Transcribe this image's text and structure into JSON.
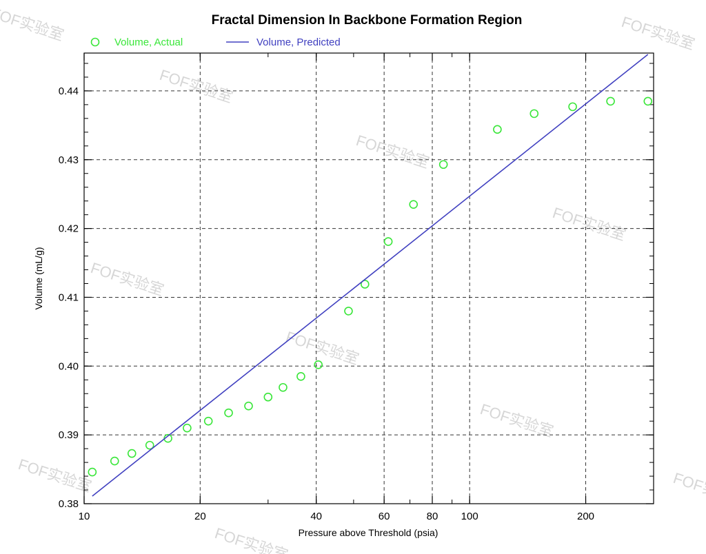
{
  "chart_data": {
    "type": "scatter",
    "title": "Fractal Dimension In Backbone Formation Region",
    "xlabel": "Pressure above Threshold (psia)",
    "ylabel": "Volume (mL/g)",
    "x_scale": "log",
    "xlim": [
      10,
      300
    ],
    "ylim": [
      0.38,
      0.4455
    ],
    "x_ticks": [
      10,
      20,
      40,
      60,
      80,
      100,
      200
    ],
    "y_ticks": [
      0.38,
      0.39,
      0.4,
      0.41,
      0.42,
      0.43,
      0.44
    ],
    "grid": true,
    "legend_position": "top-left",
    "series": [
      {
        "name": "Volume, Actual",
        "kind": "markers",
        "color": "#39e639",
        "x": [
          10.5,
          12.0,
          13.3,
          14.8,
          16.5,
          18.5,
          21.0,
          23.7,
          26.7,
          30.0,
          32.8,
          36.5,
          40.5,
          48.5,
          53.5,
          61.5,
          71.5,
          85.5,
          118,
          147,
          185,
          232,
          290
        ],
        "y": [
          0.3846,
          0.3862,
          0.3873,
          0.3885,
          0.3895,
          0.391,
          0.392,
          0.3932,
          0.3942,
          0.3955,
          0.3969,
          0.3985,
          0.4002,
          0.408,
          0.4119,
          0.4181,
          0.4235,
          0.4293,
          0.4344,
          0.4367,
          0.4377,
          0.4385,
          0.4385
        ]
      },
      {
        "name": "Volume, Predicted",
        "kind": "line",
        "color": "#4040c0",
        "x": [
          10.5,
          290
        ],
        "y": [
          0.3811,
          0.4453
        ]
      }
    ]
  },
  "watermarks": [
    "FOF实验室",
    "FOF实验室",
    "FOF实验室",
    "FOF实验室",
    "FOF实验室",
    "FOF实验室",
    "FOF实验室",
    "FOF实验室",
    "FOF实验室",
    "FOF实验室",
    "FOF实验室"
  ]
}
